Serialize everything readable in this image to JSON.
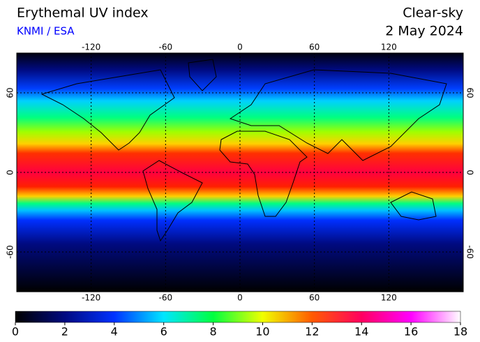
{
  "header": {
    "title": "Erythemal UV index",
    "source": "KNMI / ESA",
    "condition": "Clear-sky",
    "date": "2 May 2024"
  },
  "map": {
    "lonlim": [
      -180,
      180
    ],
    "latlim": [
      -90,
      90
    ],
    "lon_ticks": [
      -120,
      -60,
      0,
      60,
      120
    ],
    "lat_ticks": [
      60,
      0,
      -60
    ],
    "grid": true
  },
  "colorbar": {
    "lim": [
      0,
      18
    ],
    "ticks": [
      0,
      2,
      4,
      6,
      8,
      10,
      12,
      14,
      16,
      18
    ],
    "colors": [
      "#000000",
      "#000a80",
      "#0032ff",
      "#00e6ff",
      "#00ff40",
      "#f0ff00",
      "#ff5a00",
      "#ff0060",
      "#ff00ff",
      "#ffffff"
    ]
  }
}
